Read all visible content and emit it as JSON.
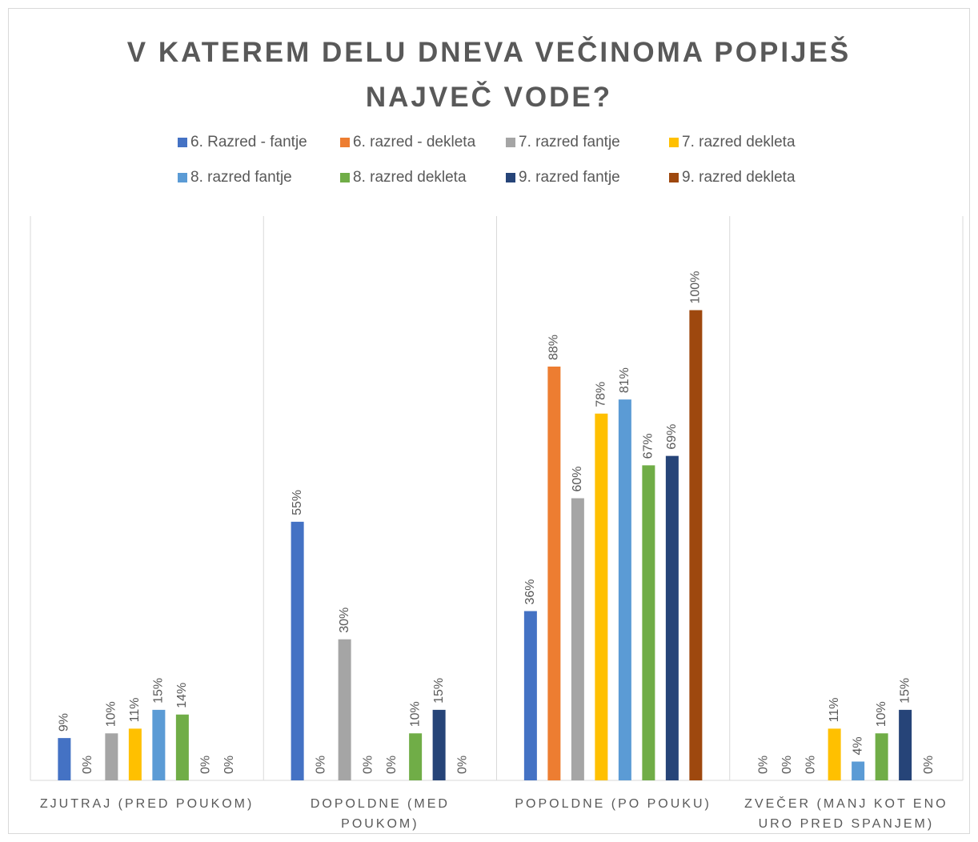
{
  "chart_data": {
    "type": "bar",
    "title": "V KATEREM DELU DNEVA VEČINOMA POPIJEŠ NAJVEČ VODE?",
    "categories": [
      "ZJUTRAJ (PRED POUKOM)",
      "DOPOLDNE (MED POUKOM)",
      "POPOLDNE (PO POUKU)",
      "ZVEČER (MANJ KOT ENO URO PRED SPANJEM)"
    ],
    "series": [
      {
        "name": "6. Razred - fantje",
        "color": "#4472c4",
        "values": [
          9,
          55,
          36,
          0
        ],
        "value_labels": [
          "9%",
          "55%",
          "36%",
          "0%"
        ]
      },
      {
        "name": "6. razred - dekleta",
        "color": "#ed7d31",
        "values": [
          0,
          0,
          88,
          0
        ],
        "value_labels": [
          "0%",
          "0%",
          "88%",
          "0%"
        ]
      },
      {
        "name": "7. razred fantje",
        "color": "#a5a5a5",
        "values": [
          10,
          30,
          60,
          0
        ],
        "value_labels": [
          "10%",
          "30%",
          "60%",
          "0%"
        ]
      },
      {
        "name": "7. razred dekleta",
        "color": "#ffc000",
        "values": [
          11,
          0,
          78,
          11
        ],
        "value_labels": [
          "11%",
          "0%",
          "78%",
          "11%"
        ]
      },
      {
        "name": "8. razred fantje",
        "color": "#5b9bd5",
        "values": [
          15,
          0,
          81,
          4
        ],
        "value_labels": [
          "15%",
          "0%",
          "81%",
          "4%"
        ]
      },
      {
        "name": "8. razred dekleta",
        "color": "#70ad47",
        "values": [
          14,
          10,
          67,
          10
        ],
        "value_labels": [
          "14%",
          "10%",
          "67%",
          "10%"
        ]
      },
      {
        "name": "9. razred fantje",
        "color": "#264478",
        "values": [
          0,
          15,
          69,
          15
        ],
        "value_labels": [
          "0%",
          "15%",
          "69%",
          "15%"
        ]
      },
      {
        "name": "9. razred dekleta",
        "color": "#9e480e",
        "values": [
          0,
          0,
          100,
          0
        ],
        "value_labels": [
          "0%",
          "0%",
          "100%",
          "0%"
        ]
      }
    ],
    "ylim": [
      0,
      120
    ]
  }
}
